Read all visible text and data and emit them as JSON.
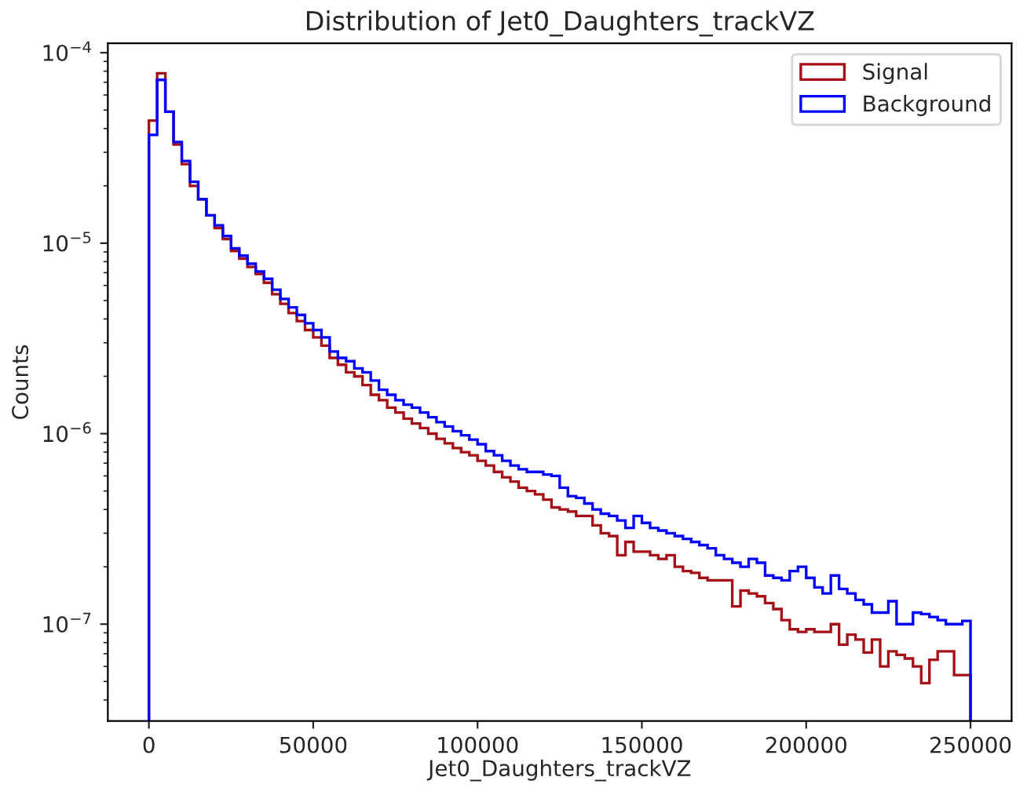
{
  "chart_data": {
    "type": "histogram",
    "title": "Distribution of Jet0_Daughters_trackVZ",
    "xlabel": "Jet0_Daughters_trackVZ",
    "ylabel": "Counts",
    "bins": [
      0,
      2500,
      5000,
      7500,
      10000,
      12500,
      15000,
      17500,
      20000,
      22500,
      25000,
      27500,
      30000,
      32500,
      35000,
      37500,
      40000,
      42500,
      45000,
      47500,
      50000,
      52500,
      55000,
      57500,
      60000,
      62500,
      65000,
      67500,
      70000,
      72500,
      75000,
      77500,
      80000,
      82500,
      85000,
      87500,
      90000,
      92500,
      95000,
      97500,
      100000,
      102500,
      105000,
      107500,
      110000,
      112500,
      115000,
      117500,
      120000,
      122500,
      125000,
      127500,
      130000,
      132500,
      135000,
      137500,
      140000,
      142500,
      145000,
      147500,
      150000,
      152500,
      155000,
      157500,
      160000,
      162500,
      165000,
      167500,
      170000,
      172500,
      175000,
      177500,
      180000,
      182500,
      185000,
      187500,
      190000,
      192500,
      195000,
      197500,
      200000,
      202500,
      205000,
      207500,
      210000,
      212500,
      215000,
      217500,
      220000,
      222500,
      225000,
      227500,
      230000,
      232500,
      235000,
      237500,
      240000,
      242500,
      245000,
      247500,
      250000
    ],
    "series": [
      {
        "name": "Signal",
        "color": "#a50f15",
        "values": [
          4.4e-05,
          7.8e-05,
          4.9e-05,
          3.3e-05,
          2.6e-05,
          2e-05,
          1.7e-05,
          1.4e-05,
          1.2e-05,
          1.05e-05,
          9.1e-06,
          8.3e-06,
          7.5e-06,
          6.9e-06,
          6.2e-06,
          5.4e-06,
          4.8e-06,
          4.3e-06,
          3.9e-06,
          3.5e-06,
          3.2e-06,
          2.9e-06,
          2.5e-06,
          2.3e-06,
          2.1e-06,
          2e-06,
          1.8e-06,
          1.6e-06,
          1.5e-06,
          1.37e-06,
          1.29e-06,
          1.2e-06,
          1.13e-06,
          1.07e-06,
          1e-06,
          9.4e-07,
          8.9e-07,
          8.4e-07,
          8e-07,
          7.7e-07,
          7.2e-07,
          6.8e-07,
          6.3e-07,
          5.9e-07,
          5.6e-07,
          5.2e-07,
          5e-07,
          4.8e-07,
          4.5e-07,
          4.1e-07,
          4e-07,
          3.9e-07,
          3.7e-07,
          3.7e-07,
          3.3e-07,
          3e-07,
          2.9e-07,
          2.3e-07,
          2.7e-07,
          2.4e-07,
          2.4e-07,
          2.3e-07,
          2.2e-07,
          2.3e-07,
          2e-07,
          1.9e-07,
          1.86e-07,
          1.75e-07,
          1.7e-07,
          1.7e-07,
          1.7e-07,
          1.24e-07,
          1.5e-07,
          1.45e-07,
          1.4e-07,
          1.29e-07,
          1.2e-07,
          1.05e-07,
          9.4e-08,
          9.1e-08,
          9.4e-08,
          9.1e-08,
          9.1e-08,
          1e-07,
          7.8e-08,
          8.8e-08,
          8.3e-08,
          7.1e-08,
          8.3e-08,
          6e-08,
          7.2e-08,
          6.9e-08,
          6.6e-08,
          6e-08,
          4.9e-08,
          6.5e-08,
          7.2e-08,
          7.2e-08,
          5.4e-08,
          5.4e-08
        ]
      },
      {
        "name": "Background",
        "color": "#0000ff",
        "values": [
          3.7e-05,
          7.2e-05,
          4.9e-05,
          3.4e-05,
          2.7e-05,
          2.1e-05,
          1.7e-05,
          1.4e-05,
          1.24e-05,
          1.09e-05,
          9.4e-06,
          8.6e-06,
          7.8e-06,
          7.1e-06,
          6.5e-06,
          5.7e-06,
          5.1e-06,
          4.6e-06,
          4.2e-06,
          3.8e-06,
          3.5e-06,
          3.2e-06,
          2.7e-06,
          2.5e-06,
          2.4e-06,
          2.2e-06,
          2.1e-06,
          1.9e-06,
          1.7e-06,
          1.6e-06,
          1.5e-06,
          1.42e-06,
          1.37e-06,
          1.29e-06,
          1.22e-06,
          1.15e-06,
          1.09e-06,
          1.03e-06,
          9.8e-07,
          9.3e-07,
          8.8e-07,
          8.1e-07,
          7.7e-07,
          7.2e-07,
          6.8e-07,
          6.5e-07,
          6.3e-07,
          6.3e-07,
          6.1e-07,
          6e-07,
          5.2e-07,
          4.7e-07,
          4.6e-07,
          4.3e-07,
          4e-07,
          3.8e-07,
          3.7e-07,
          3.5e-07,
          3.2e-07,
          3.7e-07,
          3.4e-07,
          3.2e-07,
          3.1e-07,
          3e-07,
          2.9e-07,
          2.8e-07,
          2.7e-07,
          2.6e-07,
          2.5e-07,
          2.3e-07,
          2.2e-07,
          2.1e-07,
          2e-07,
          2.2e-07,
          2.1e-07,
          1.8e-07,
          1.75e-07,
          1.7e-07,
          1.9e-07,
          2e-07,
          1.75e-07,
          1.56e-07,
          1.45e-07,
          1.8e-07,
          1.53e-07,
          1.45e-07,
          1.34e-07,
          1.27e-07,
          1.15e-07,
          1.15e-07,
          1.32e-07,
          1e-07,
          1e-07,
          1.15e-07,
          1.13e-07,
          1.09e-07,
          1.05e-07,
          1e-07,
          1e-07,
          1.04e-07
        ]
      }
    ],
    "log": "y",
    "xlim": [
      -12500,
      262500
    ],
    "xticks": [
      0,
      50000,
      100000,
      150000,
      200000,
      250000
    ],
    "ylim": [
      3.1e-08,
      0.000112
    ],
    "yticks": [
      {
        "value": 1e-07,
        "label": "10$^{−7}$"
      },
      {
        "value": 1e-06,
        "label": "10$^{−6}$"
      },
      {
        "value": 1e-05,
        "label": "10$^{−5}$"
      },
      {
        "value": 0.0001,
        "label": "10$^{−4}$"
      }
    ],
    "grid": false,
    "legend": "top right"
  }
}
